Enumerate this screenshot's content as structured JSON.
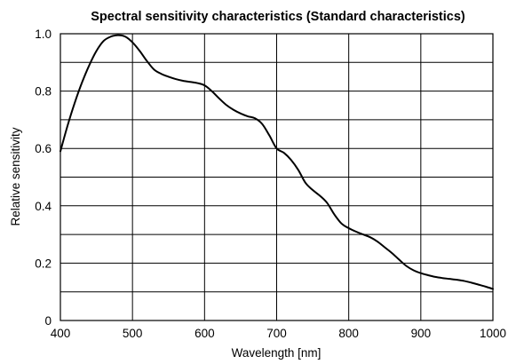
{
  "chart_data": {
    "type": "line",
    "title": "Spectral sensitivity characteristics (Standard characteristics)",
    "xlabel": "Wavelength [nm]",
    "ylabel": "Relative sensitivity",
    "xlim": [
      400,
      1000
    ],
    "ylim": [
      0,
      1.0
    ],
    "x_ticks": [
      400,
      500,
      600,
      700,
      800,
      900,
      1000
    ],
    "x_tick_labels": [
      "400",
      "500",
      "600",
      "700",
      "800",
      "900",
      "1000"
    ],
    "y_ticks": [
      0,
      0.2,
      0.4,
      0.6,
      0.8,
      1.0
    ],
    "y_tick_labels": [
      "0",
      "0.2",
      "0.4",
      "0.6",
      "0.8",
      "1.0"
    ],
    "grid": true,
    "line_color": "#000000",
    "series": [
      {
        "x": [
          400,
          410,
          420,
          430,
          440,
          450,
          460,
          470,
          480,
          490,
          500,
          510,
          520,
          530,
          540,
          550,
          560,
          570,
          580,
          590,
          600,
          610,
          620,
          630,
          640,
          650,
          660,
          670,
          680,
          690,
          700,
          710,
          720,
          730,
          740,
          750,
          760,
          770,
          780,
          790,
          800,
          810,
          820,
          830,
          840,
          850,
          860,
          870,
          880,
          890,
          900,
          910,
          920,
          930,
          940,
          950,
          960,
          970,
          980,
          990,
          1000
        ],
        "y": [
          0.59,
          0.68,
          0.76,
          0.83,
          0.89,
          0.94,
          0.975,
          0.99,
          0.995,
          0.99,
          0.97,
          0.94,
          0.905,
          0.875,
          0.86,
          0.85,
          0.842,
          0.836,
          0.832,
          0.828,
          0.82,
          0.8,
          0.775,
          0.752,
          0.735,
          0.722,
          0.712,
          0.705,
          0.685,
          0.645,
          0.6,
          0.585,
          0.56,
          0.525,
          0.48,
          0.455,
          0.435,
          0.41,
          0.37,
          0.338,
          0.322,
          0.31,
          0.3,
          0.29,
          0.275,
          0.255,
          0.235,
          0.212,
          0.19,
          0.175,
          0.165,
          0.158,
          0.152,
          0.148,
          0.145,
          0.142,
          0.138,
          0.132,
          0.125,
          0.118,
          0.11
        ]
      }
    ]
  }
}
